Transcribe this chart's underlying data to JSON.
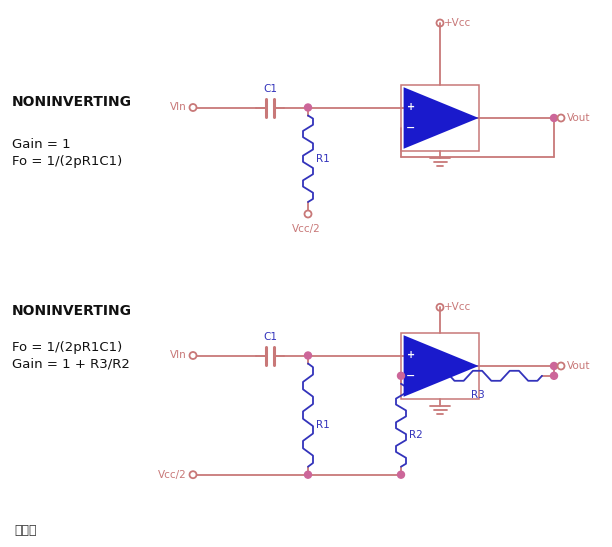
{
  "bg_color": "#ffffff",
  "wire_color": "#c87878",
  "opamp_fill": "#1a1acc",
  "opamp_edge": "#00008b",
  "dot_color": "#cc6699",
  "resistor_color": "#3333bb",
  "cap_color": "#c87878",
  "label_color": "#111111",
  "vcc_color": "#c87878",
  "figsize": [
    6.12,
    5.47
  ],
  "dpi": 100,
  "title_text": "图十四",
  "c1_label": "C1",
  "r1_label": "R1",
  "r2_label": "R2",
  "r3_label": "R3",
  "vcc_label": "+Vcc",
  "vcc2_label": "Vcc/2",
  "vin_label": "VIn",
  "vout_label": "Vout",
  "circ1_line1": "NONINVERTING",
  "circ1_line2": "Gain = 1",
  "circ1_line3": "Fo = 1/(2pR1C1)",
  "circ2_line1": "NONINVERTING",
  "circ2_line2": "Fo = 1/(2pR1C1)",
  "circ2_line3": "Gain = 1 + R3/R2"
}
